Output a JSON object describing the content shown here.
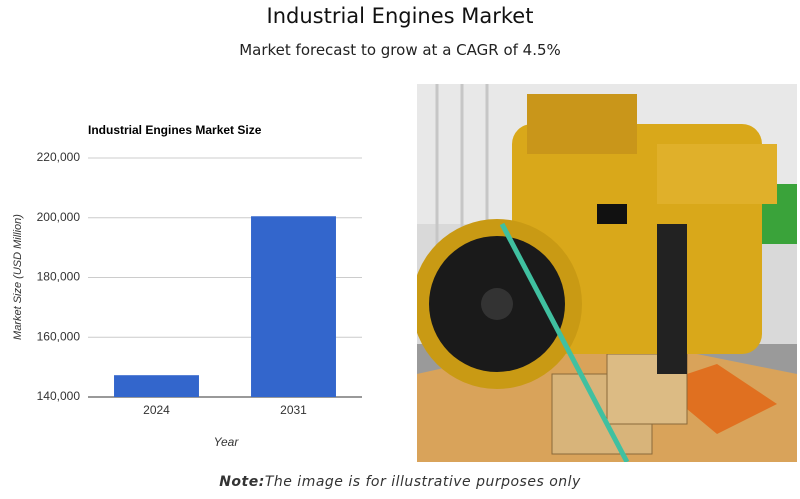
{
  "header": {
    "title": "Industrial Engines Market",
    "subtitle": "Market forecast to grow at a CAGR of 4.5%"
  },
  "chart_data": {
    "type": "bar",
    "title": "Industrial Engines Market Size",
    "x_label": "Year",
    "y_label": "Market Size (USD Million)",
    "categories": [
      "2024",
      "2031"
    ],
    "values": [
      147300,
      200500
    ],
    "color": "#3366cc",
    "ylim": [
      140000,
      220000
    ],
    "yticks": [
      {
        "value": 140000,
        "label": "140,000"
      },
      {
        "value": 160000,
        "label": "160,000"
      },
      {
        "value": 180000,
        "label": "180,000"
      },
      {
        "value": 200000,
        "label": "200,000"
      },
      {
        "value": 220000,
        "label": "220,000"
      }
    ],
    "grid": true
  },
  "note": {
    "label": "Note:",
    "text": "The image is for illustrative purposes only"
  }
}
